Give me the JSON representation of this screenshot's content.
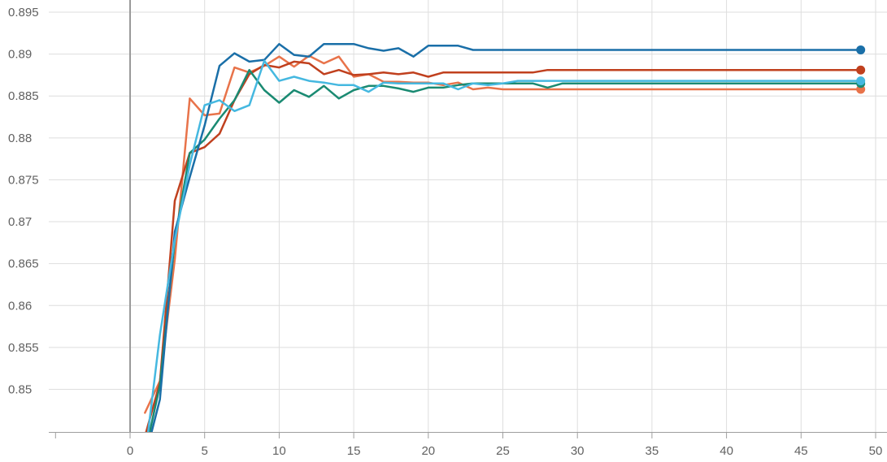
{
  "chart_data": {
    "type": "line",
    "title": "",
    "xlabel": "",
    "ylabel": "",
    "xlim": [
      -5,
      50
    ],
    "ylim": [
      0.8448,
      0.8965
    ],
    "xticks": [
      0,
      5,
      10,
      15,
      20,
      25,
      30,
      35,
      40,
      45,
      50
    ],
    "xtick_labels": [
      "0",
      "5",
      "10",
      "15",
      "20",
      "25",
      "30",
      "35",
      "40",
      "45",
      "50"
    ],
    "yticks": [
      0.85,
      0.855,
      0.86,
      0.865,
      0.87,
      0.875,
      0.88,
      0.885,
      0.89,
      0.895
    ],
    "ytick_labels": [
      "0.85",
      "0.855",
      "0.86",
      "0.865",
      "0.87",
      "0.875",
      "0.88",
      "0.885",
      "0.89",
      "0.895"
    ],
    "grid": true,
    "series": [
      {
        "color": "#e8734a",
        "x": [
          1,
          2,
          3,
          4,
          5,
          6,
          7,
          8,
          9,
          10,
          11,
          12,
          13,
          14,
          15,
          16,
          17,
          18,
          19,
          20,
          21,
          22,
          23,
          24,
          25,
          26,
          27,
          28,
          29,
          30,
          31,
          32,
          33,
          34,
          35,
          36,
          37,
          38,
          39,
          40,
          41,
          42,
          43,
          44,
          45,
          46,
          47,
          48,
          49
        ],
        "y": [
          0.8472,
          0.851,
          0.8655,
          0.8847,
          0.8827,
          0.8829,
          0.8884,
          0.8878,
          0.8886,
          0.8897,
          0.8885,
          0.8898,
          0.8889,
          0.8897,
          0.8873,
          0.8876,
          0.8867,
          0.8867,
          0.8866,
          0.8866,
          0.8863,
          0.8866,
          0.8858,
          0.886,
          0.8858,
          0.8858,
          0.8858,
          0.8858,
          0.8858,
          0.8858,
          0.8858,
          0.8858,
          0.8858,
          0.8858,
          0.8858,
          0.8858,
          0.8858,
          0.8858,
          0.8858,
          0.8858,
          0.8858,
          0.8858,
          0.8858,
          0.8858,
          0.8858,
          0.8858,
          0.8858,
          0.8858,
          0.8858
        ]
      },
      {
        "color": "#c0401e",
        "x": [
          1,
          2,
          3,
          4,
          5,
          6,
          7,
          8,
          9,
          10,
          11,
          12,
          13,
          14,
          15,
          16,
          17,
          18,
          19,
          20,
          21,
          22,
          23,
          24,
          25,
          26,
          27,
          28,
          29,
          30,
          31,
          32,
          33,
          34,
          35,
          36,
          37,
          38,
          39,
          40,
          41,
          42,
          43,
          44,
          45,
          46,
          47,
          48,
          49
        ],
        "y": [
          0.8444,
          0.8508,
          0.8725,
          0.8782,
          0.8789,
          0.8805,
          0.8845,
          0.8876,
          0.8887,
          0.8884,
          0.8891,
          0.8889,
          0.8876,
          0.8881,
          0.8875,
          0.8876,
          0.8878,
          0.8876,
          0.8878,
          0.8873,
          0.8878,
          0.8878,
          0.8878,
          0.8878,
          0.8878,
          0.8878,
          0.8878,
          0.8881,
          0.8881,
          0.8881,
          0.8881,
          0.8881,
          0.8881,
          0.8881,
          0.8881,
          0.8881,
          0.8881,
          0.8881,
          0.8881,
          0.8881,
          0.8881,
          0.8881,
          0.8881,
          0.8881,
          0.8881,
          0.8881,
          0.8881,
          0.8881,
          0.8881
        ]
      },
      {
        "color": "#1a8a72",
        "x": [
          1,
          2,
          3,
          4,
          5,
          6,
          7,
          8,
          9,
          10,
          11,
          12,
          13,
          14,
          15,
          16,
          17,
          18,
          19,
          20,
          21,
          22,
          23,
          24,
          25,
          26,
          27,
          28,
          29,
          30,
          31,
          32,
          33,
          34,
          35,
          36,
          37,
          38,
          39,
          40,
          41,
          42,
          43,
          44,
          45,
          46,
          47,
          48,
          49
        ],
        "y": [
          0.8423,
          0.8505,
          0.8678,
          0.8782,
          0.8798,
          0.8823,
          0.8845,
          0.8881,
          0.8857,
          0.8842,
          0.8857,
          0.8849,
          0.8862,
          0.8847,
          0.8857,
          0.8862,
          0.8862,
          0.8859,
          0.8855,
          0.886,
          0.886,
          0.8863,
          0.8865,
          0.8865,
          0.8865,
          0.8865,
          0.8865,
          0.886,
          0.8865,
          0.8865,
          0.8865,
          0.8865,
          0.8865,
          0.8865,
          0.8865,
          0.8865,
          0.8865,
          0.8865,
          0.8865,
          0.8865,
          0.8865,
          0.8865,
          0.8865,
          0.8865,
          0.8865,
          0.8865,
          0.8865,
          0.8865,
          0.8865
        ]
      },
      {
        "color": "#1a6fa8",
        "x": [
          1,
          2,
          3,
          4,
          5,
          6,
          7,
          8,
          9,
          10,
          11,
          12,
          13,
          14,
          15,
          16,
          17,
          18,
          19,
          20,
          21,
          22,
          23,
          24,
          25,
          26,
          27,
          28,
          29,
          30,
          31,
          32,
          33,
          34,
          35,
          36,
          37,
          38,
          39,
          40,
          41,
          42,
          43,
          44,
          45,
          46,
          47,
          48,
          49
        ],
        "y": [
          0.8418,
          0.8488,
          0.8688,
          0.8753,
          0.8815,
          0.8886,
          0.8901,
          0.8891,
          0.8893,
          0.8912,
          0.8899,
          0.8897,
          0.8912,
          0.8912,
          0.8912,
          0.8907,
          0.8904,
          0.8907,
          0.8897,
          0.891,
          0.891,
          0.891,
          0.8905,
          0.8905,
          0.8905,
          0.8905,
          0.8905,
          0.8905,
          0.8905,
          0.8905,
          0.8905,
          0.8905,
          0.8905,
          0.8905,
          0.8905,
          0.8905,
          0.8905,
          0.8905,
          0.8905,
          0.8905,
          0.8905,
          0.8905,
          0.8905,
          0.8905,
          0.8905,
          0.8905,
          0.8905,
          0.8905,
          0.8905
        ]
      },
      {
        "color": "#45b8e0",
        "x": [
          1,
          2,
          3,
          4,
          5,
          6,
          7,
          8,
          9,
          10,
          11,
          12,
          13,
          14,
          15,
          16,
          17,
          18,
          19,
          20,
          21,
          22,
          23,
          24,
          25,
          26,
          27,
          28,
          29,
          30,
          31,
          32,
          33,
          34,
          35,
          36,
          37,
          38,
          39,
          40,
          41,
          42,
          43,
          44,
          45,
          46,
          47,
          48,
          49
        ],
        "y": [
          0.8418,
          0.8565,
          0.8678,
          0.8768,
          0.8839,
          0.8845,
          0.8832,
          0.8839,
          0.8892,
          0.8868,
          0.8873,
          0.8868,
          0.8866,
          0.8863,
          0.8863,
          0.8855,
          0.8866,
          0.8865,
          0.8865,
          0.8865,
          0.8865,
          0.8858,
          0.8865,
          0.8863,
          0.8865,
          0.8868,
          0.8868,
          0.8868,
          0.8868,
          0.8868,
          0.8868,
          0.8868,
          0.8868,
          0.8868,
          0.8868,
          0.8868,
          0.8868,
          0.8868,
          0.8868,
          0.8868,
          0.8868,
          0.8868,
          0.8868,
          0.8868,
          0.8868,
          0.8868,
          0.8868,
          0.8868,
          0.8868
        ]
      }
    ]
  }
}
